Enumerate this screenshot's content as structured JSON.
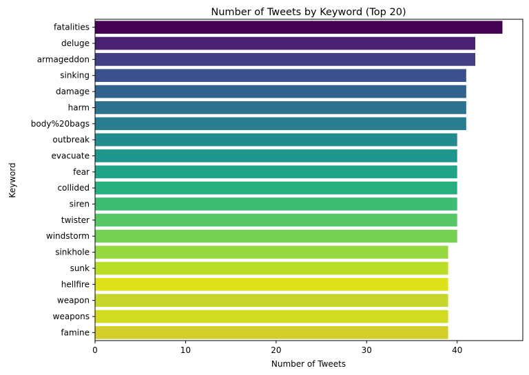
{
  "chart_data": {
    "type": "bar",
    "orientation": "horizontal",
    "title": "Number of Tweets by Keyword (Top 20)",
    "xlabel": "Number of Tweets",
    "ylabel": "Keyword",
    "xlim": [
      0,
      47.25
    ],
    "xticks": [
      0,
      10,
      20,
      30,
      40
    ],
    "grid": false,
    "colormap": "viridis",
    "categories": [
      "fatalities",
      "deluge",
      "armageddon",
      "sinking",
      "damage",
      "harm",
      "body%20bags",
      "outbreak",
      "evacuate",
      "fear",
      "collided",
      "siren",
      "twister",
      "windstorm",
      "sinkhole",
      "sunk",
      "hellfire",
      "weapon",
      "weapons",
      "famine"
    ],
    "values": [
      45,
      42,
      42,
      41,
      41,
      41,
      41,
      40,
      40,
      40,
      40,
      40,
      40,
      40,
      39,
      39,
      39,
      39,
      39,
      39
    ],
    "colors": [
      "#440154",
      "#482172",
      "#423f85",
      "#3b518b",
      "#33638d",
      "#2c728e",
      "#287d8e",
      "#238a8d",
      "#1f968b",
      "#20a386",
      "#29af7f",
      "#3dbc74",
      "#56c667",
      "#75d054",
      "#95d840",
      "#bade28",
      "#dde318",
      "#c5d72d",
      "#d1dc21",
      "#d2cf2b"
    ]
  }
}
